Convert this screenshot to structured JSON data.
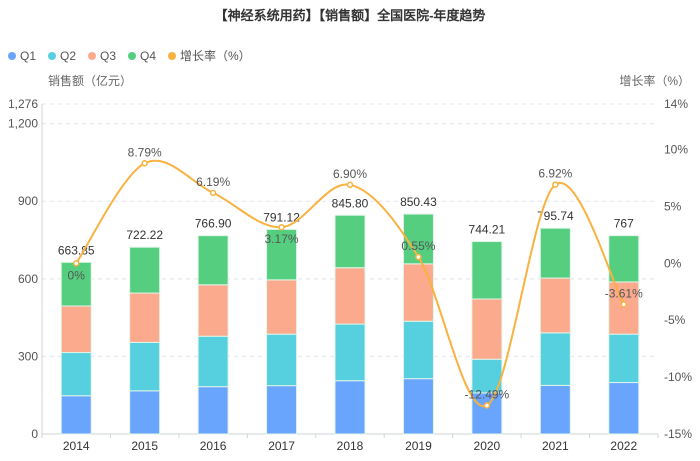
{
  "chart_data": {
    "type": "bar",
    "stacked": true,
    "title": "【神经系统用药】【销售额】全国医院-年度趋势",
    "ylabel": "销售额（亿元）",
    "y2label": "增长率（%）",
    "categories": [
      "2014",
      "2015",
      "2016",
      "2017",
      "2018",
      "2019",
      "2020",
      "2021",
      "2022"
    ],
    "ylim": [
      0,
      1276
    ],
    "yticks": [
      0,
      300,
      600,
      900,
      1200,
      1276
    ],
    "ytick_labels": [
      "0",
      "300",
      "600",
      "900",
      "1,200",
      "1,276"
    ],
    "y2lim": [
      -15,
      14
    ],
    "y2ticks": [
      -15,
      -10,
      -5,
      0,
      5,
      10,
      14
    ],
    "y2tick_labels": [
      "-15%",
      "-10%",
      "-5%",
      "0%",
      "5%",
      "10%",
      "14%"
    ],
    "grid": true,
    "legend_position": "top-left",
    "series": [
      {
        "name": "Q1",
        "color": "#6aa5fd",
        "values": [
          148,
          167,
          183,
          187,
          206,
          214,
          159,
          188,
          199
        ]
      },
      {
        "name": "Q2",
        "color": "#56cfdf",
        "values": [
          167,
          187,
          195,
          199,
          219,
          222,
          130,
          203,
          187
        ]
      },
      {
        "name": "Q3",
        "color": "#fcaa8d",
        "values": [
          180,
          191,
          199,
          210,
          218,
          222,
          233,
          212,
          202
        ]
      },
      {
        "name": "Q4",
        "color": "#55cf7f",
        "values": [
          168.85,
          177.22,
          189.9,
          195.12,
          202.8,
          192.43,
          222.21,
          192.74,
          179
        ]
      }
    ],
    "totals": [
      "663.85",
      "722.22",
      "766.90",
      "791.12",
      "845.80",
      "850.43",
      "744.21",
      "795.74",
      "767"
    ],
    "line_series": {
      "name": "增长率（%）",
      "color": "#f9b140",
      "axis": "right",
      "values": [
        0,
        8.79,
        6.19,
        3.17,
        6.9,
        0.55,
        -12.49,
        6.92,
        -3.61
      ],
      "labels": [
        "0%",
        "8.79%",
        "6.19%",
        "3.17%",
        "6.90%",
        "0.55%",
        "-12.49%",
        "6.92%",
        "-3.61%"
      ]
    }
  }
}
